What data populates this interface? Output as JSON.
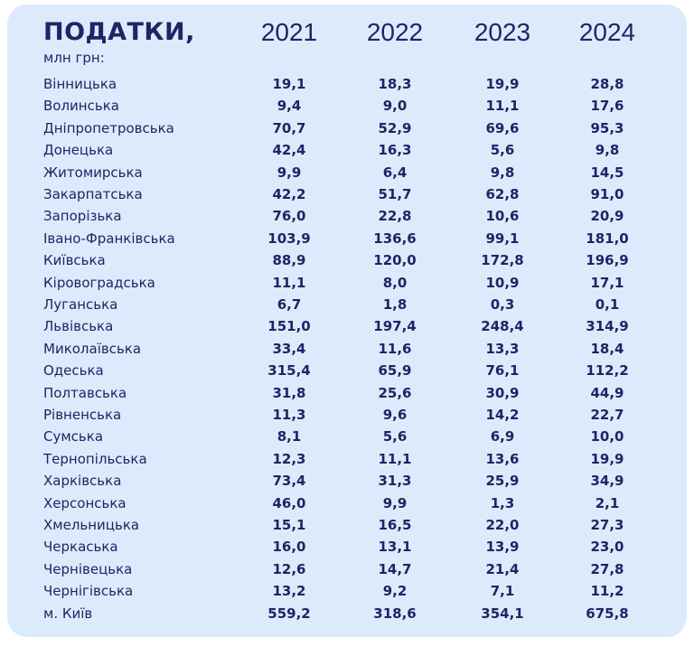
{
  "header": {
    "title": "ПОДАТКИ,",
    "subtitle": "млн грн:"
  },
  "table": {
    "columns": [
      "2021",
      "2022",
      "2023",
      "2024"
    ],
    "rows": [
      [
        "Вінницька",
        "19,1",
        "18,3",
        "19,9",
        "28,8"
      ],
      [
        "Волинська",
        "9,4",
        "9,0",
        "11,1",
        "17,6"
      ],
      [
        "Дніпропетровська",
        "70,7",
        "52,9",
        "69,6",
        "95,3"
      ],
      [
        "Донецька",
        "42,4",
        "16,3",
        "5,6",
        "9,8"
      ],
      [
        "Житомирська",
        "9,9",
        "6,4",
        "9,8",
        "14,5"
      ],
      [
        "Закарпатська",
        "42,2",
        "51,7",
        "62,8",
        "91,0"
      ],
      [
        "Запорізька",
        "76,0",
        "22,8",
        "10,6",
        "20,9"
      ],
      [
        "Івано-Франківська",
        "103,9",
        "136,6",
        "99,1",
        "181,0"
      ],
      [
        "Київська",
        "88,9",
        "120,0",
        "172,8",
        "196,9"
      ],
      [
        "Кіровоградська",
        "11,1",
        "8,0",
        "10,9",
        "17,1"
      ],
      [
        "Луганська",
        "6,7",
        "1,8",
        "0,3",
        "0,1"
      ],
      [
        "Львівська",
        "151,0",
        "197,4",
        "248,4",
        "314,9"
      ],
      [
        "Миколаївська",
        "33,4",
        "11,6",
        "13,3",
        "18,4"
      ],
      [
        "Одеська",
        "315,4",
        "65,9",
        "76,1",
        "112,2"
      ],
      [
        "Полтавська",
        "31,8",
        "25,6",
        "30,9",
        "44,9"
      ],
      [
        "Рівненська",
        "11,3",
        "9,6",
        "14,2",
        "22,7"
      ],
      [
        "Сумська",
        "8,1",
        "5,6",
        "6,9",
        "10,0"
      ],
      [
        "Тернопільська",
        "12,3",
        "11,1",
        "13,6",
        "19,9"
      ],
      [
        "Харківська",
        "73,4",
        "31,3",
        "25,9",
        "34,9"
      ],
      [
        "Херсонська",
        "46,0",
        "9,9",
        "1,3",
        "2,1"
      ],
      [
        "Хмельницька",
        "15,1",
        "16,5",
        "22,0",
        "27,3"
      ],
      [
        "Черкаська",
        "16,0",
        "13,1",
        "13,9",
        "23,0"
      ],
      [
        "Чернівецька",
        "12,6",
        "14,7",
        "21,4",
        "27,8"
      ],
      [
        "Чернігівська",
        "13,2",
        "9,2",
        "7,1",
        "11,2"
      ],
      [
        "м. Київ",
        "559,2",
        "318,6",
        "354,1",
        "675,8"
      ]
    ]
  }
}
